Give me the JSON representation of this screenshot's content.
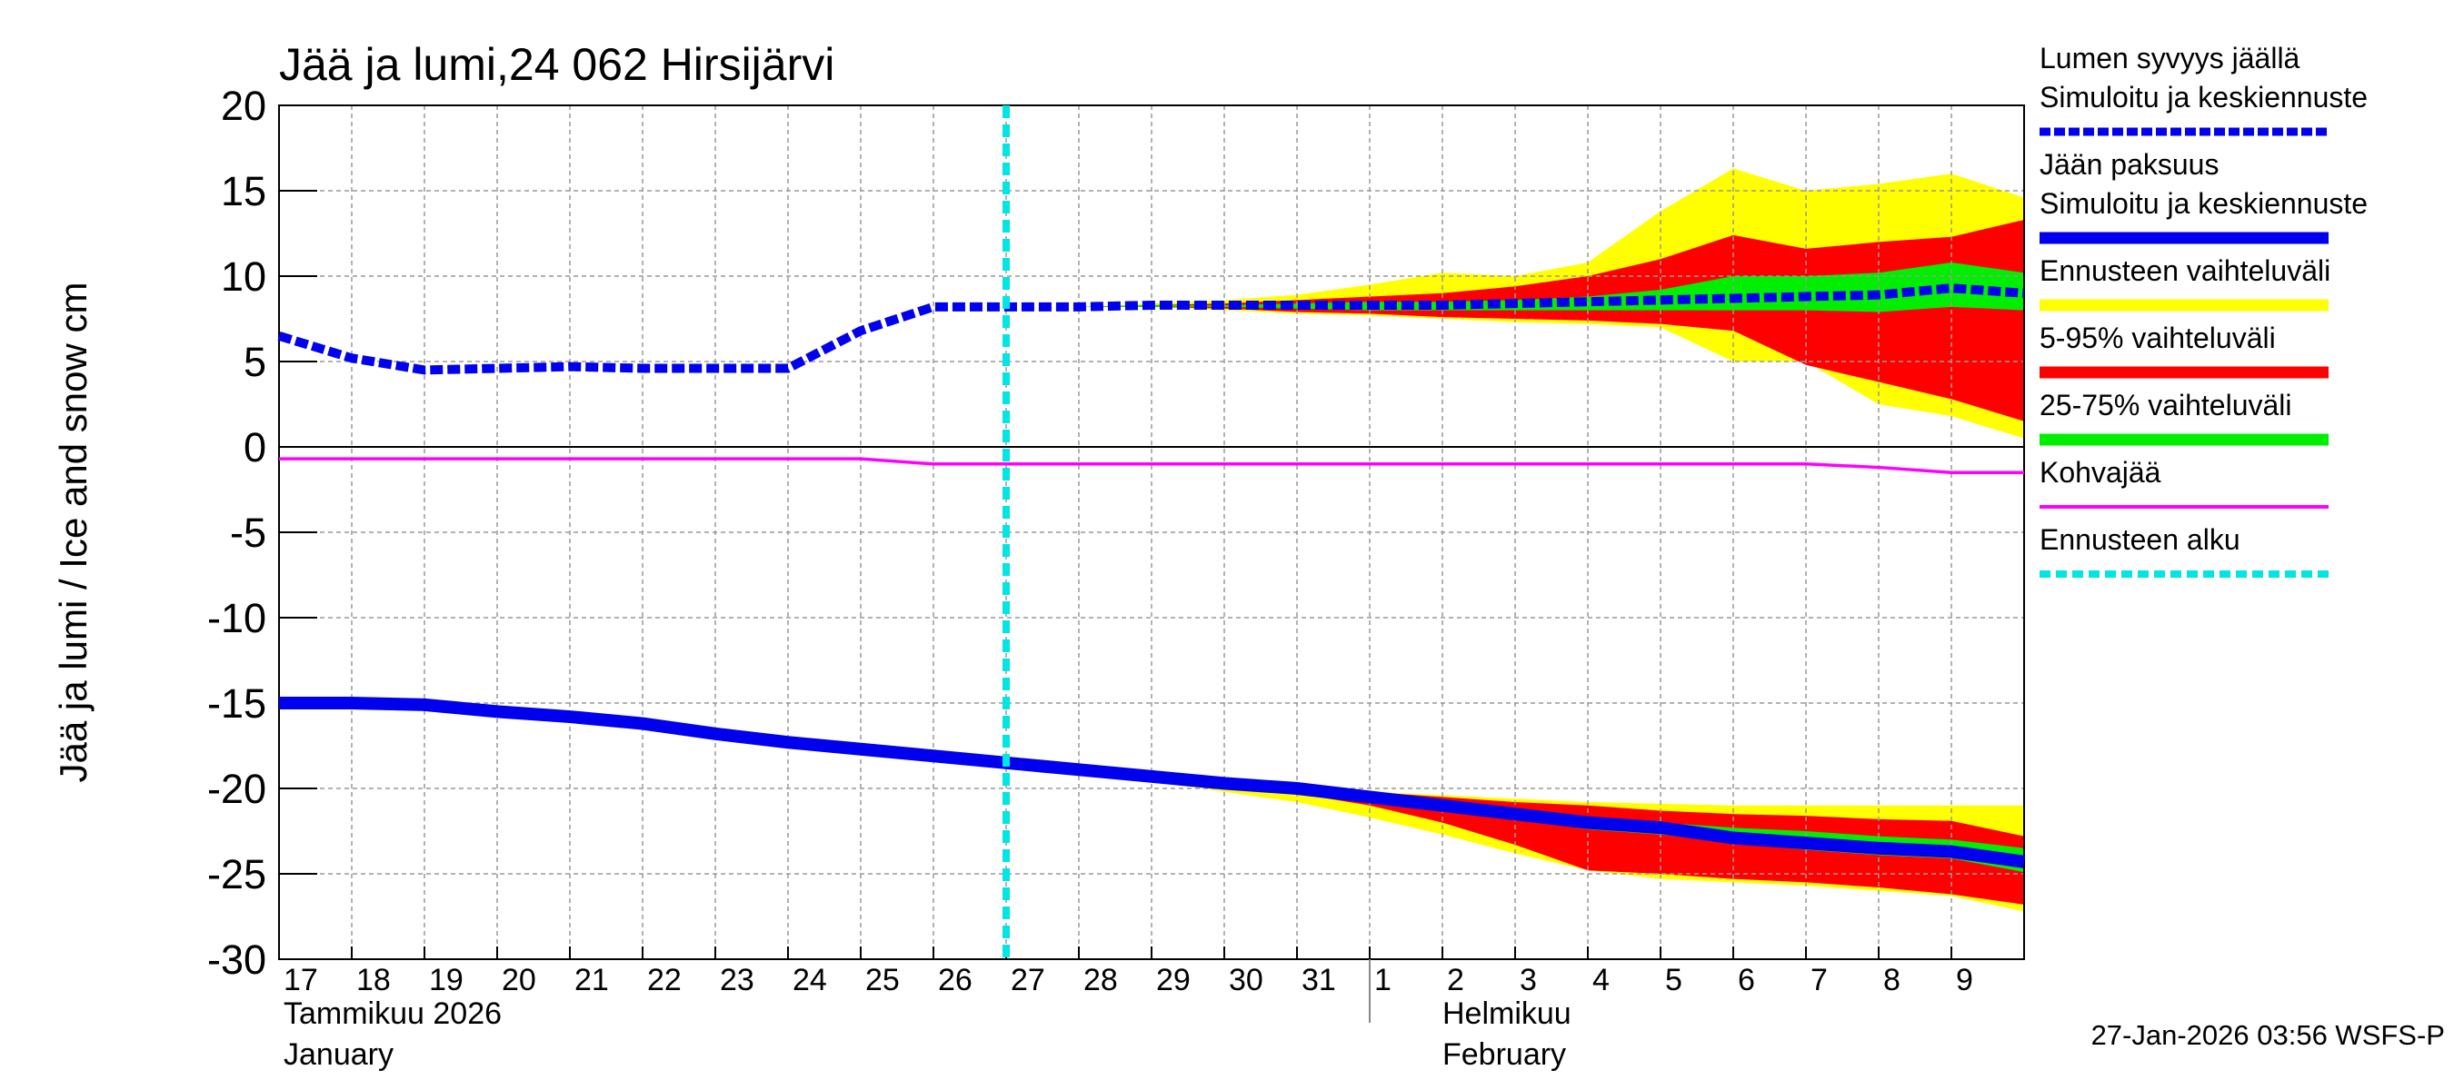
{
  "chart_data": {
    "type": "line",
    "title": "Jää ja lumi,24 062 Hirsijärvi",
    "ylabel": "Jää ja lumi / Ice and snow    cm",
    "xlim": [
      0,
      24
    ],
    "xticks": [
      {
        "value": 0,
        "label": "17"
      },
      {
        "value": 1,
        "label": "18"
      },
      {
        "value": 2,
        "label": "19"
      },
      {
        "value": 3,
        "label": "20"
      },
      {
        "value": 4,
        "label": "21"
      },
      {
        "value": 5,
        "label": "22"
      },
      {
        "value": 6,
        "label": "23"
      },
      {
        "value": 7,
        "label": "24"
      },
      {
        "value": 8,
        "label": "25"
      },
      {
        "value": 9,
        "label": "26"
      },
      {
        "value": 10,
        "label": "27"
      },
      {
        "value": 11,
        "label": "28"
      },
      {
        "value": 12,
        "label": "29"
      },
      {
        "value": 13,
        "label": "30"
      },
      {
        "value": 14,
        "label": "31"
      },
      {
        "value": 15,
        "label": "1"
      },
      {
        "value": 16,
        "label": "2"
      },
      {
        "value": 17,
        "label": "3"
      },
      {
        "value": 18,
        "label": "4"
      },
      {
        "value": 19,
        "label": "5"
      },
      {
        "value": 20,
        "label": "6"
      },
      {
        "value": 21,
        "label": "7"
      },
      {
        "value": 22,
        "label": "8"
      },
      {
        "value": 23,
        "label": "9"
      }
    ],
    "ylim": [
      -30,
      20
    ],
    "yticks": [
      20,
      15,
      10,
      5,
      0,
      -5,
      -10,
      -15,
      -20,
      -25,
      -30
    ],
    "grid": true,
    "months": [
      {
        "name": "Tammikuu  2026",
        "name_en": "January"
      },
      {
        "name": "Helmikuu",
        "name_en": "February"
      }
    ],
    "x": [
      0,
      1,
      2,
      3,
      4,
      5,
      6,
      7,
      8,
      9,
      10,
      11,
      12,
      13,
      14,
      15,
      16,
      17,
      18,
      19,
      20,
      21,
      22,
      23,
      24
    ],
    "series": [
      {
        "name": "Lumen syvyys jäällä",
        "sublabel": "Simuloitu ja keskiennuste",
        "color": "#0000ee",
        "dashed": true,
        "values": [
          6.5,
          5.2,
          4.5,
          4.6,
          4.7,
          4.6,
          4.6,
          4.6,
          6.8,
          8.2,
          8.2,
          8.2,
          8.3,
          8.3,
          8.3,
          8.3,
          8.3,
          8.4,
          8.5,
          8.6,
          8.7,
          8.8,
          8.9,
          9.3,
          9.0
        ]
      },
      {
        "name": "Jään paksuus",
        "sublabel": "Simuloitu ja keskiennuste",
        "color": "#0000ee",
        "dashed": false,
        "values": [
          -15,
          -15,
          -15.1,
          -15.5,
          -15.8,
          -16.2,
          -16.8,
          -17.3,
          -17.7,
          -18.1,
          -18.5,
          -18.9,
          -19.3,
          -19.7,
          -20.0,
          -20.5,
          -21.0,
          -21.5,
          -22.0,
          -22.3,
          -22.9,
          -23.2,
          -23.5,
          -23.7,
          -24.3
        ]
      }
    ],
    "band_x": [
      11,
      12,
      13,
      14,
      15,
      16,
      17,
      18,
      19,
      20,
      21,
      22,
      23,
      24
    ],
    "bands": [
      {
        "name": "Ennusteen vaihteluväli",
        "color": "#ffff00",
        "snow": {
          "upper": [
            8.2,
            8.4,
            8.6,
            8.9,
            9.5,
            10.2,
            10.0,
            10.8,
            13.8,
            16.3,
            15.0,
            15.4,
            16.0,
            14.6
          ],
          "lower": [
            8.2,
            8.2,
            8.0,
            7.8,
            7.7,
            7.5,
            7.3,
            7.2,
            7.0,
            5.0,
            5.0,
            2.5,
            1.8,
            0.5
          ]
        },
        "ice": {
          "upper": [
            -18.9,
            -19.2,
            -19.6,
            -19.9,
            -20.2,
            -20.4,
            -20.6,
            -20.8,
            -20.9,
            -21.0,
            -21.0,
            -21.0,
            -21.0,
            -21.0
          ],
          "lower": [
            -18.9,
            -19.6,
            -20.2,
            -20.8,
            -21.7,
            -22.7,
            -23.8,
            -24.8,
            -25.3,
            -25.5,
            -25.7,
            -26.0,
            -26.3,
            -27.2
          ]
        }
      },
      {
        "name": "5-95% vaihteluväli",
        "color": "#ff0000",
        "snow": {
          "upper": [
            8.2,
            8.3,
            8.4,
            8.6,
            8.8,
            9.0,
            9.4,
            10.0,
            11.0,
            12.4,
            11.6,
            12.0,
            12.3,
            13.3
          ],
          "lower": [
            8.2,
            8.2,
            8.1,
            7.9,
            7.8,
            7.6,
            7.5,
            7.4,
            7.2,
            6.8,
            4.8,
            3.8,
            2.8,
            1.5
          ]
        },
        "ice": {
          "upper": [
            -18.9,
            -19.3,
            -19.6,
            -19.9,
            -20.2,
            -20.5,
            -20.8,
            -21.0,
            -21.3,
            -21.5,
            -21.6,
            -21.8,
            -21.9,
            -22.8
          ],
          "lower": [
            -18.9,
            -19.5,
            -19.9,
            -20.3,
            -21.0,
            -22.0,
            -23.3,
            -24.8,
            -25.0,
            -25.3,
            -25.5,
            -25.8,
            -26.2,
            -26.8
          ]
        }
      },
      {
        "name": "25-75% vaihteluväli",
        "color": "#00ee00",
        "snow": {
          "upper": [
            8.2,
            8.3,
            8.3,
            8.4,
            8.5,
            8.5,
            8.6,
            8.8,
            9.2,
            10.0,
            10.0,
            10.2,
            10.8,
            10.2
          ],
          "lower": [
            8.2,
            8.2,
            8.2,
            8.1,
            8.0,
            8.0,
            8.0,
            8.0,
            8.0,
            8.0,
            8.0,
            7.9,
            8.2,
            8.0
          ]
        },
        "ice": {
          "upper": [
            -18.9,
            -19.3,
            -19.7,
            -20.0,
            -20.4,
            -20.8,
            -21.3,
            -21.8,
            -22.0,
            -22.3,
            -22.5,
            -22.8,
            -23.0,
            -23.5
          ],
          "lower": [
            -18.9,
            -19.4,
            -19.8,
            -20.1,
            -20.6,
            -21.2,
            -21.8,
            -22.4,
            -22.7,
            -23.2,
            -23.6,
            -23.9,
            -24.1,
            -24.9
          ]
        }
      }
    ],
    "slush": {
      "name": "Kohvajää",
      "color": "#ff00ff",
      "values": [
        -0.7,
        -0.7,
        -0.7,
        -0.7,
        -0.7,
        -0.7,
        -0.7,
        -0.7,
        -0.7,
        -1.0,
        -1.0,
        -1.0,
        -1.0,
        -1.0,
        -1.0,
        -1.0,
        -1.0,
        -1.0,
        -1.0,
        -1.0,
        -1.0,
        -1.0,
        -1.2,
        -1.5,
        -1.5
      ]
    },
    "forecast_start": {
      "name": "Ennusteen alku",
      "color": "#00e5e5",
      "x": 10
    },
    "footer": "27-Jan-2026 03:56 WSFS-P"
  }
}
